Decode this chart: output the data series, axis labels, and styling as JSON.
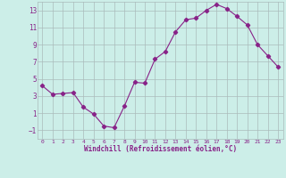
{
  "x": [
    0,
    1,
    2,
    3,
    4,
    5,
    6,
    7,
    8,
    9,
    10,
    11,
    12,
    13,
    14,
    15,
    16,
    17,
    18,
    19,
    20,
    21,
    22,
    23
  ],
  "y": [
    4.2,
    3.2,
    3.3,
    3.4,
    1.7,
    0.9,
    -0.5,
    -0.7,
    1.8,
    4.6,
    4.5,
    7.3,
    8.2,
    10.5,
    11.9,
    12.1,
    13.0,
    13.7,
    13.2,
    12.3,
    11.3,
    9.0,
    7.7,
    6.4
  ],
  "line_color": "#882288",
  "marker": "D",
  "marker_size": 2.2,
  "bg_color": "#cceee8",
  "grid_color": "#aabbbb",
  "xlabel": "Windchill (Refroidissement éolien,°C)",
  "xlabel_color": "#882288",
  "tick_color": "#882288",
  "ylim": [
    -2,
    14
  ],
  "xlim": [
    -0.5,
    23.5
  ],
  "yticks": [
    -1,
    1,
    3,
    5,
    7,
    9,
    11,
    13
  ],
  "xticks": [
    0,
    1,
    2,
    3,
    4,
    5,
    6,
    7,
    8,
    9,
    10,
    11,
    12,
    13,
    14,
    15,
    16,
    17,
    18,
    19,
    20,
    21,
    22,
    23
  ]
}
